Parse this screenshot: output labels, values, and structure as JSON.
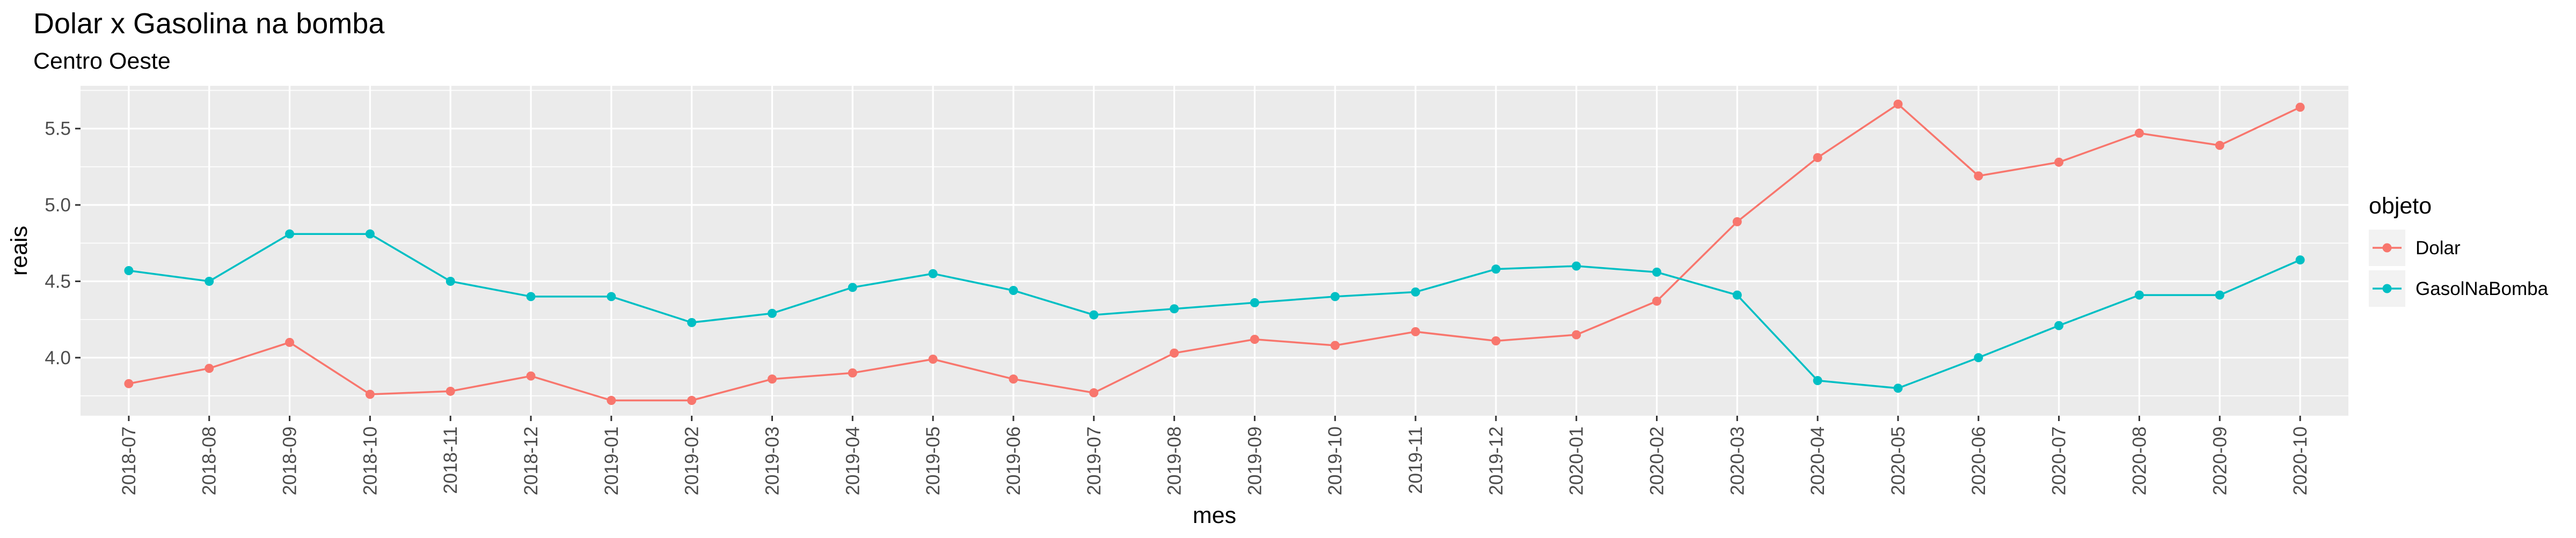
{
  "chart_data": {
    "type": "line",
    "title": "Dolar x Gasolina na bomba",
    "subtitle": "Centro Oeste",
    "xlabel": "mes",
    "ylabel": "reais",
    "ylim": [
      3.62,
      5.78
    ],
    "yticks": [
      "4.0",
      "4.5",
      "5.0",
      "5.5"
    ],
    "grid": true,
    "legend_title": "objeto",
    "legend_position": "right",
    "categories": [
      "2018-07",
      "2018-08",
      "2018-09",
      "2018-10",
      "2018-11",
      "2018-12",
      "2019-01",
      "2019-02",
      "2019-03",
      "2019-04",
      "2019-05",
      "2019-06",
      "2019-07",
      "2019-08",
      "2019-09",
      "2019-10",
      "2019-11",
      "2019-12",
      "2020-01",
      "2020-02",
      "2020-03",
      "2020-04",
      "2020-05",
      "2020-06",
      "2020-07",
      "2020-08",
      "2020-09",
      "2020-10"
    ],
    "series": [
      {
        "name": "Dolar",
        "color": "#F8766D",
        "values": [
          3.83,
          3.93,
          4.1,
          3.76,
          3.78,
          3.88,
          3.72,
          3.72,
          3.86,
          3.9,
          3.99,
          3.86,
          3.77,
          4.03,
          4.12,
          4.08,
          4.17,
          4.11,
          4.15,
          4.37,
          4.89,
          5.31,
          5.66,
          5.19,
          5.28,
          5.47,
          5.39,
          5.64
        ]
      },
      {
        "name": "GasolNaBomba",
        "color": "#00BFC4",
        "values": [
          4.57,
          4.5,
          4.81,
          4.81,
          4.5,
          4.4,
          4.4,
          4.23,
          4.29,
          4.46,
          4.55,
          4.44,
          4.28,
          4.32,
          4.36,
          4.4,
          4.43,
          4.58,
          4.6,
          4.56,
          4.41,
          3.85,
          3.8,
          4.0,
          4.21,
          4.41,
          4.41,
          4.64
        ]
      }
    ]
  }
}
